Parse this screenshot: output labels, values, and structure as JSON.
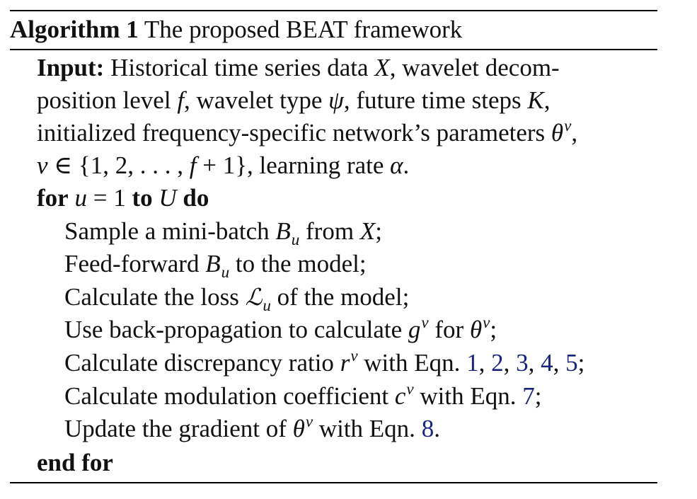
{
  "algorithm": {
    "label": "Algorithm 1",
    "title": "The proposed BEAT framework",
    "input_label": "Input:",
    "input_lines": [
      "Historical time series data X, wavelet decom-",
      "position level f, wavelet type ψ, future time steps K,",
      "initialized frequency-specific network’s parameters θ^v,",
      "v ∈ {1, 2, . . . , f + 1}, learning rate α."
    ],
    "for_keyword": "for",
    "for_condition": "u = 1 to U do",
    "steps": [
      "Sample a mini-batch B_u from X;",
      "Feed-forward B_u to the model;",
      "Calculate the loss ℒ_u of the model;",
      "Use back-propagation to calculate g^v for θ^v;",
      "Calculate discrepancy ratio r^v with Eqn. 1, 2, 3, 4, 5;",
      "Calculate modulation coefficient c^v with Eqn. 7;",
      "Update the gradient of θ^v with Eqn. 8."
    ],
    "end_keyword": "end for",
    "equation_refs": [
      "1",
      "2",
      "3",
      "4",
      "5",
      "7",
      "8"
    ],
    "colors": {
      "text": "#111111",
      "link": "#1a237e",
      "rule": "#000000"
    }
  }
}
